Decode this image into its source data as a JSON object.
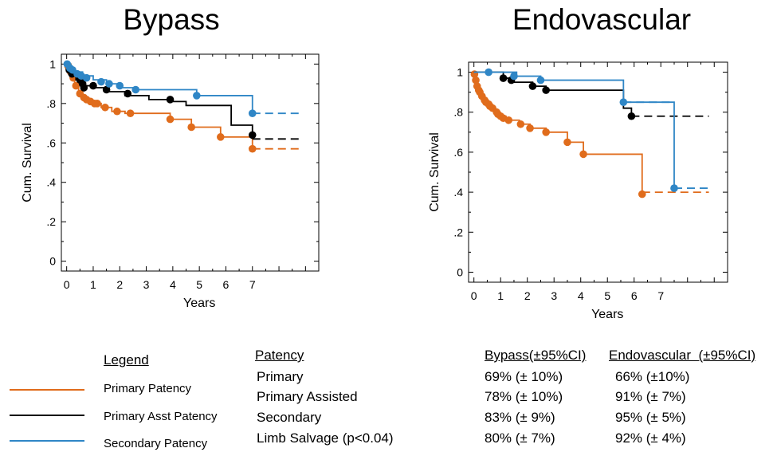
{
  "chart_data": [
    {
      "type": "line",
      "title": "Bypass",
      "xlabel": "Years",
      "ylabel": "Cum. Survival",
      "xlim": [
        -0.2,
        9.5
      ],
      "ylim": [
        -0.05,
        1.05
      ],
      "x_ticks": [
        0,
        1,
        2,
        3,
        4,
        5,
        6,
        7
      ],
      "x_tick_labels": [
        "0",
        "1",
        "2",
        "3",
        "4",
        "5",
        "6",
        "7"
      ],
      "y_ticks": [
        0,
        0.2,
        0.4,
        0.6,
        0.8,
        1.0
      ],
      "y_tick_labels": [
        "0",
        ".2",
        ".4",
        ".6",
        ".8",
        "1"
      ],
      "grid": false,
      "series": [
        {
          "name": "Primary Patency",
          "color": "#E06C1C",
          "step": [
            [
              0,
              1.0
            ],
            [
              0.1,
              0.97
            ],
            [
              0.2,
              0.94
            ],
            [
              0.3,
              0.9
            ],
            [
              0.45,
              0.86
            ],
            [
              0.6,
              0.83
            ],
            [
              0.8,
              0.81
            ],
            [
              1.0,
              0.8
            ],
            [
              1.3,
              0.78
            ],
            [
              1.7,
              0.76
            ],
            [
              2.2,
              0.75
            ],
            [
              3.9,
              0.72
            ],
            [
              4.7,
              0.68
            ],
            [
              5.8,
              0.63
            ],
            [
              7.0,
              0.57
            ]
          ],
          "censor": [
            [
              0.05,
              0.99
            ],
            [
              0.15,
              0.96
            ],
            [
              0.25,
              0.93
            ],
            [
              0.35,
              0.89
            ],
            [
              0.5,
              0.85
            ],
            [
              0.65,
              0.83
            ],
            [
              0.75,
              0.82
            ],
            [
              0.9,
              0.81
            ],
            [
              1.05,
              0.8
            ],
            [
              1.15,
              0.8
            ],
            [
              1.45,
              0.78
            ],
            [
              1.9,
              0.76
            ],
            [
              2.4,
              0.75
            ],
            [
              3.9,
              0.72
            ],
            [
              4.7,
              0.68
            ],
            [
              5.8,
              0.63
            ],
            [
              7.0,
              0.57
            ]
          ],
          "extension": [
            [
              7.0,
              0.57
            ],
            [
              8.8,
              0.57
            ]
          ]
        },
        {
          "name": "Primary Asst Patency",
          "color": "#000000",
          "step": [
            [
              0,
              1.0
            ],
            [
              0.15,
              0.95
            ],
            [
              0.35,
              0.92
            ],
            [
              0.55,
              0.89
            ],
            [
              1.0,
              0.88
            ],
            [
              1.6,
              0.86
            ],
            [
              2.2,
              0.84
            ],
            [
              3.1,
              0.82
            ],
            [
              3.9,
              0.81
            ],
            [
              4.5,
              0.79
            ],
            [
              6.2,
              0.69
            ],
            [
              7.0,
              0.63
            ]
          ],
          "censor": [
            [
              0.1,
              0.97
            ],
            [
              0.2,
              0.95
            ],
            [
              0.5,
              0.92
            ],
            [
              0.6,
              0.9
            ],
            [
              0.65,
              0.88
            ],
            [
              1.0,
              0.89
            ],
            [
              1.5,
              0.87
            ],
            [
              2.3,
              0.85
            ],
            [
              3.9,
              0.82
            ],
            [
              7.0,
              0.64
            ]
          ],
          "extension": [
            [
              7.0,
              0.62
            ],
            [
              8.8,
              0.62
            ]
          ]
        },
        {
          "name": "Secondary Patency",
          "color": "#2F86C6",
          "step": [
            [
              0,
              1.0
            ],
            [
              0.1,
              0.98
            ],
            [
              0.3,
              0.96
            ],
            [
              0.6,
              0.94
            ],
            [
              1.0,
              0.92
            ],
            [
              1.5,
              0.9
            ],
            [
              2.0,
              0.88
            ],
            [
              2.6,
              0.87
            ],
            [
              4.9,
              0.84
            ],
            [
              7.0,
              0.75
            ]
          ],
          "censor": [
            [
              0.02,
              1.0
            ],
            [
              0.12,
              0.98
            ],
            [
              0.22,
              0.97
            ],
            [
              0.4,
              0.95
            ],
            [
              0.55,
              0.94
            ],
            [
              0.75,
              0.93
            ],
            [
              1.3,
              0.91
            ],
            [
              1.6,
              0.9
            ],
            [
              2.0,
              0.89
            ],
            [
              2.6,
              0.87
            ],
            [
              4.9,
              0.84
            ],
            [
              7.0,
              0.75
            ]
          ],
          "extension": [
            [
              7.0,
              0.75
            ],
            [
              8.8,
              0.75
            ]
          ]
        }
      ]
    },
    {
      "type": "line",
      "title": "Endovascular",
      "xlabel": "Years",
      "ylabel": "Cum. Survival",
      "xlim": [
        -0.2,
        9.5
      ],
      "ylim": [
        -0.05,
        1.05
      ],
      "x_ticks": [
        0,
        1,
        2,
        3,
        4,
        5,
        6,
        7
      ],
      "x_tick_labels": [
        "0",
        "1",
        "2",
        "3",
        "4",
        "5",
        "6",
        "7"
      ],
      "y_ticks": [
        0,
        0.2,
        0.4,
        0.6,
        0.8,
        1.0
      ],
      "y_tick_labels": [
        "0",
        ".2",
        ".4",
        ".6",
        ".8",
        "1"
      ],
      "grid": false,
      "series": [
        {
          "name": "Primary Patency",
          "color": "#E06C1C",
          "step": [
            [
              0,
              1.0
            ],
            [
              0.05,
              0.97
            ],
            [
              0.1,
              0.94
            ],
            [
              0.15,
              0.91
            ],
            [
              0.25,
              0.89
            ],
            [
              0.35,
              0.86
            ],
            [
              0.5,
              0.84
            ],
            [
              0.65,
              0.82
            ],
            [
              0.8,
              0.8
            ],
            [
              0.95,
              0.78
            ],
            [
              1.2,
              0.76
            ],
            [
              1.7,
              0.74
            ],
            [
              2.1,
              0.72
            ],
            [
              2.7,
              0.7
            ],
            [
              3.5,
              0.65
            ],
            [
              4.1,
              0.59
            ],
            [
              6.3,
              0.39
            ]
          ],
          "censor": [
            [
              0.02,
              0.99
            ],
            [
              0.07,
              0.96
            ],
            [
              0.12,
              0.93
            ],
            [
              0.18,
              0.91
            ],
            [
              0.22,
              0.9
            ],
            [
              0.3,
              0.88
            ],
            [
              0.4,
              0.86
            ],
            [
              0.45,
              0.85
            ],
            [
              0.55,
              0.84
            ],
            [
              0.6,
              0.83
            ],
            [
              0.7,
              0.82
            ],
            [
              0.85,
              0.8
            ],
            [
              0.9,
              0.79
            ],
            [
              1.0,
              0.78
            ],
            [
              1.1,
              0.77
            ],
            [
              1.3,
              0.76
            ],
            [
              1.75,
              0.74
            ],
            [
              2.1,
              0.72
            ],
            [
              2.7,
              0.7
            ],
            [
              3.5,
              0.65
            ],
            [
              4.1,
              0.59
            ],
            [
              6.3,
              0.39
            ]
          ],
          "extension": [
            [
              6.3,
              0.4
            ],
            [
              8.8,
              0.4
            ]
          ]
        },
        {
          "name": "Primary Asst Patency",
          "color": "#000000",
          "step": [
            [
              0,
              1.0
            ],
            [
              1.1,
              0.97
            ],
            [
              1.4,
              0.95
            ],
            [
              2.2,
              0.93
            ],
            [
              2.7,
              0.91
            ],
            [
              5.6,
              0.82
            ],
            [
              5.9,
              0.78
            ]
          ],
          "censor": [
            [
              1.1,
              0.97
            ],
            [
              1.4,
              0.96
            ],
            [
              2.2,
              0.93
            ],
            [
              2.7,
              0.91
            ],
            [
              5.9,
              0.78
            ]
          ],
          "extension": [
            [
              5.9,
              0.78
            ],
            [
              8.8,
              0.78
            ]
          ]
        },
        {
          "name": "Secondary Patency",
          "color": "#2F86C6",
          "step": [
            [
              0,
              1.0
            ],
            [
              1.6,
              0.98
            ],
            [
              2.5,
              0.96
            ],
            [
              5.6,
              0.85
            ],
            [
              7.5,
              0.43
            ]
          ],
          "censor": [
            [
              0.55,
              1.0
            ],
            [
              1.5,
              0.98
            ],
            [
              2.5,
              0.96
            ],
            [
              5.6,
              0.85
            ],
            [
              7.5,
              0.42
            ]
          ],
          "extension": [
            [
              5.6,
              0.85
            ],
            [
              7.5,
              0.85
            ]
          ],
          "tail_extension": [
            [
              7.5,
              0.42
            ],
            [
              8.8,
              0.42
            ]
          ]
        }
      ]
    }
  ],
  "legend": {
    "heading": "Legend",
    "items": [
      {
        "label": "Primary Patency",
        "color": "#E06C1C"
      },
      {
        "label": "Primary Asst Patency",
        "color": "#000000"
      },
      {
        "label": "Secondary Patency",
        "color": "#2F86C6"
      }
    ]
  },
  "table": {
    "headers": [
      "Patency",
      "Bypass(±95%CI)",
      "Endovascular  (±95%CI)"
    ],
    "rows": [
      {
        "label": "Primary",
        "bypass": "69% (± 10%)",
        "endo": "66% (±10%)"
      },
      {
        "label": "Primary Assisted",
        "bypass": "78% (± 10%)",
        "endo": "91% (± 7%)"
      },
      {
        "label": "Secondary",
        "bypass": "83% (± 9%)",
        "endo": "95% (± 5%)"
      },
      {
        "label": "Limb Salvage (p<0.04)",
        "bypass": "80% (± 7%)",
        "endo": "92% (± 4%)"
      }
    ]
  }
}
